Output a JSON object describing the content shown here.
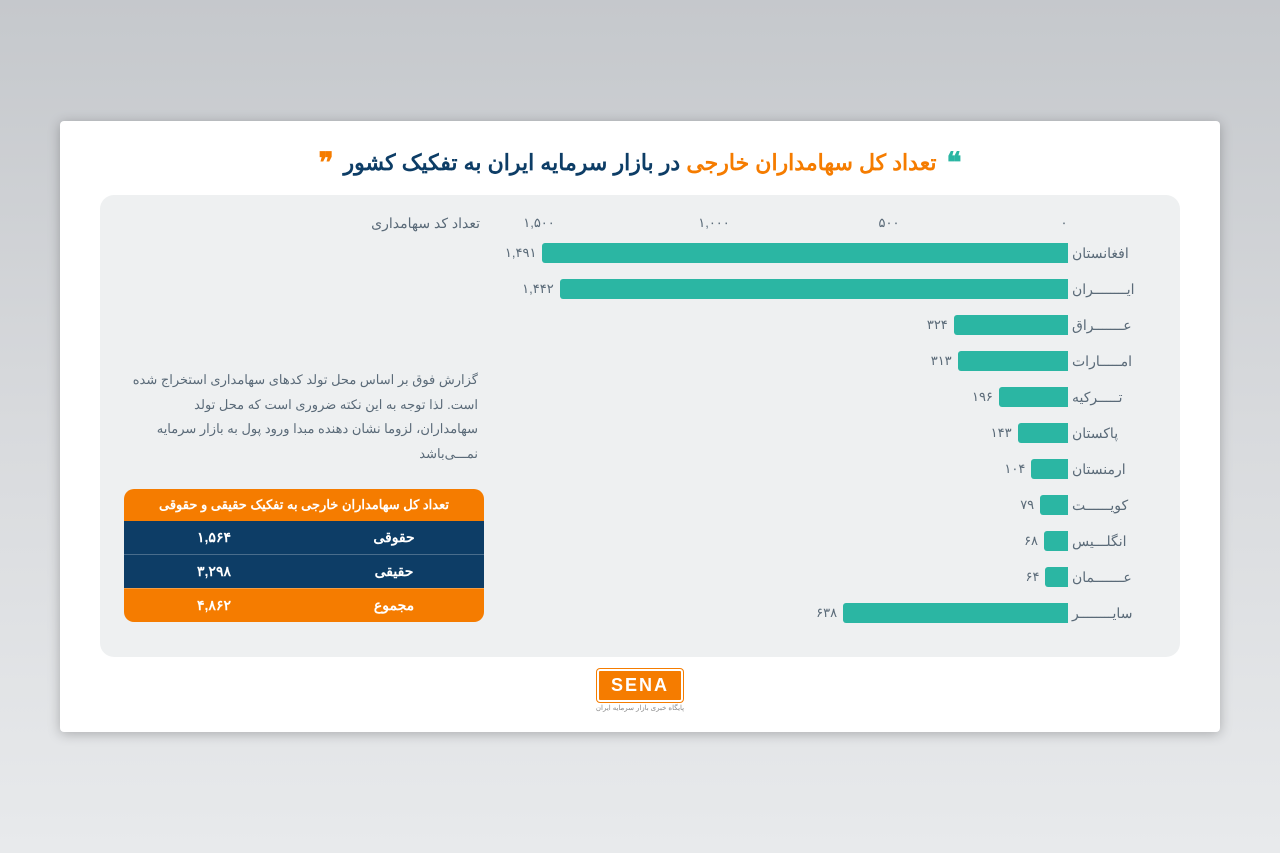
{
  "title": {
    "part1": "تعداد کل سهامداران خارجی",
    "part2": " در بازار سرمایه ایران به تفکیک کشور",
    "quote_color_left": "#2bb6a3",
    "quote_color_right": "#f57c00"
  },
  "chart": {
    "type": "bar-horizontal",
    "axis_label": "تعداد کد سهامداری",
    "bar_color": "#2bb6a3",
    "label_color": "#5a6a78",
    "background_color": "#eef0f1",
    "xmax": 1600,
    "ticks": [
      {
        "pos": 0,
        "label": "۰"
      },
      {
        "pos": 500,
        "label": "۵۰۰"
      },
      {
        "pos": 1000,
        "label": "۱,۰۰۰"
      },
      {
        "pos": 1500,
        "label": "۱,۵۰۰"
      }
    ],
    "bars": [
      {
        "label": "افغانستان",
        "value": 1491,
        "value_text": "۱,۴۹۱"
      },
      {
        "label": "ایــــــــران",
        "value": 1442,
        "value_text": "۱,۴۴۲"
      },
      {
        "label": "عـــــــراق",
        "value": 324,
        "value_text": "۳۲۴"
      },
      {
        "label": "امـــــارات",
        "value": 313,
        "value_text": "۳۱۳"
      },
      {
        "label": "تـــــرکیه",
        "value": 196,
        "value_text": "۱۹۶"
      },
      {
        "label": "پاکستان",
        "value": 143,
        "value_text": "۱۴۳"
      },
      {
        "label": "ارمنستان",
        "value": 104,
        "value_text": "۱۰۴"
      },
      {
        "label": "کویــــــت",
        "value": 79,
        "value_text": "۷۹"
      },
      {
        "label": "انگلـــیس",
        "value": 68,
        "value_text": "۶۸"
      },
      {
        "label": "عـــــــمان",
        "value": 64,
        "value_text": "۶۴"
      },
      {
        "label": "سایــــــــر",
        "value": 638,
        "value_text": "۶۳۸"
      }
    ]
  },
  "note": "گزارش فوق بر اساس محل تولد کدهای سهامداری استخراج شده است. لذا توجه به این نکته ضروری است که محل تولد سهامداران، لزوما نشان دهنده مبدا ورود پول به بازار سرمایه نمـــی‌باشد",
  "summary": {
    "header": "تعداد کل سهامداران خارجی به تفکیک حقیقی و حقوقی",
    "rows": [
      {
        "label": "حقوقی",
        "value": "۱,۵۶۴",
        "bg": "navy"
      },
      {
        "label": "حقیقی",
        "value": "۳,۲۹۸",
        "bg": "navy"
      },
      {
        "label": "مجموع",
        "value": "۴,۸۶۲",
        "bg": "orange"
      }
    ]
  },
  "logo": {
    "text": "SENA",
    "sub": "پایگاه خبری بازار سرمایه ایران"
  }
}
